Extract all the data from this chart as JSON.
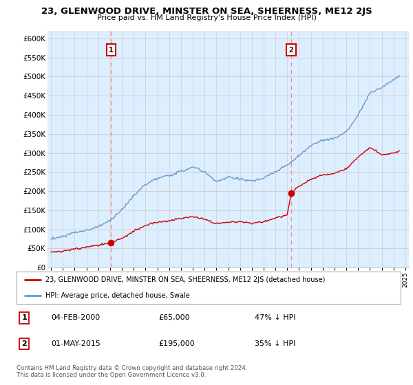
{
  "title": "23, GLENWOOD DRIVE, MINSTER ON SEA, SHEERNESS, ME12 2JS",
  "subtitle": "Price paid vs. HM Land Registry's House Price Index (HPI)",
  "legend_line1": "23, GLENWOOD DRIVE, MINSTER ON SEA, SHEERNESS, ME12 2JS (detached house)",
  "legend_line2": "HPI: Average price, detached house, Swale",
  "sale1_date": "04-FEB-2000",
  "sale1_price": "£65,000",
  "sale1_pct": "47% ↓ HPI",
  "sale1_year": 2000.09,
  "sale1_value": 65000,
  "sale2_date": "01-MAY-2015",
  "sale2_price": "£195,000",
  "sale2_pct": "35% ↓ HPI",
  "sale2_year": 2015.33,
  "sale2_value": 195000,
  "footer": "Contains HM Land Registry data © Crown copyright and database right 2024.\nThis data is licensed under the Open Government Licence v3.0.",
  "red_color": "#cc0000",
  "blue_color": "#6699cc",
  "blue_fill": "#ddeeff",
  "dashed_color": "#ff8888",
  "grid_color": "#cccccc",
  "ylim_max": 620000,
  "xlim_start": 1994.7,
  "xlim_end": 2025.3
}
